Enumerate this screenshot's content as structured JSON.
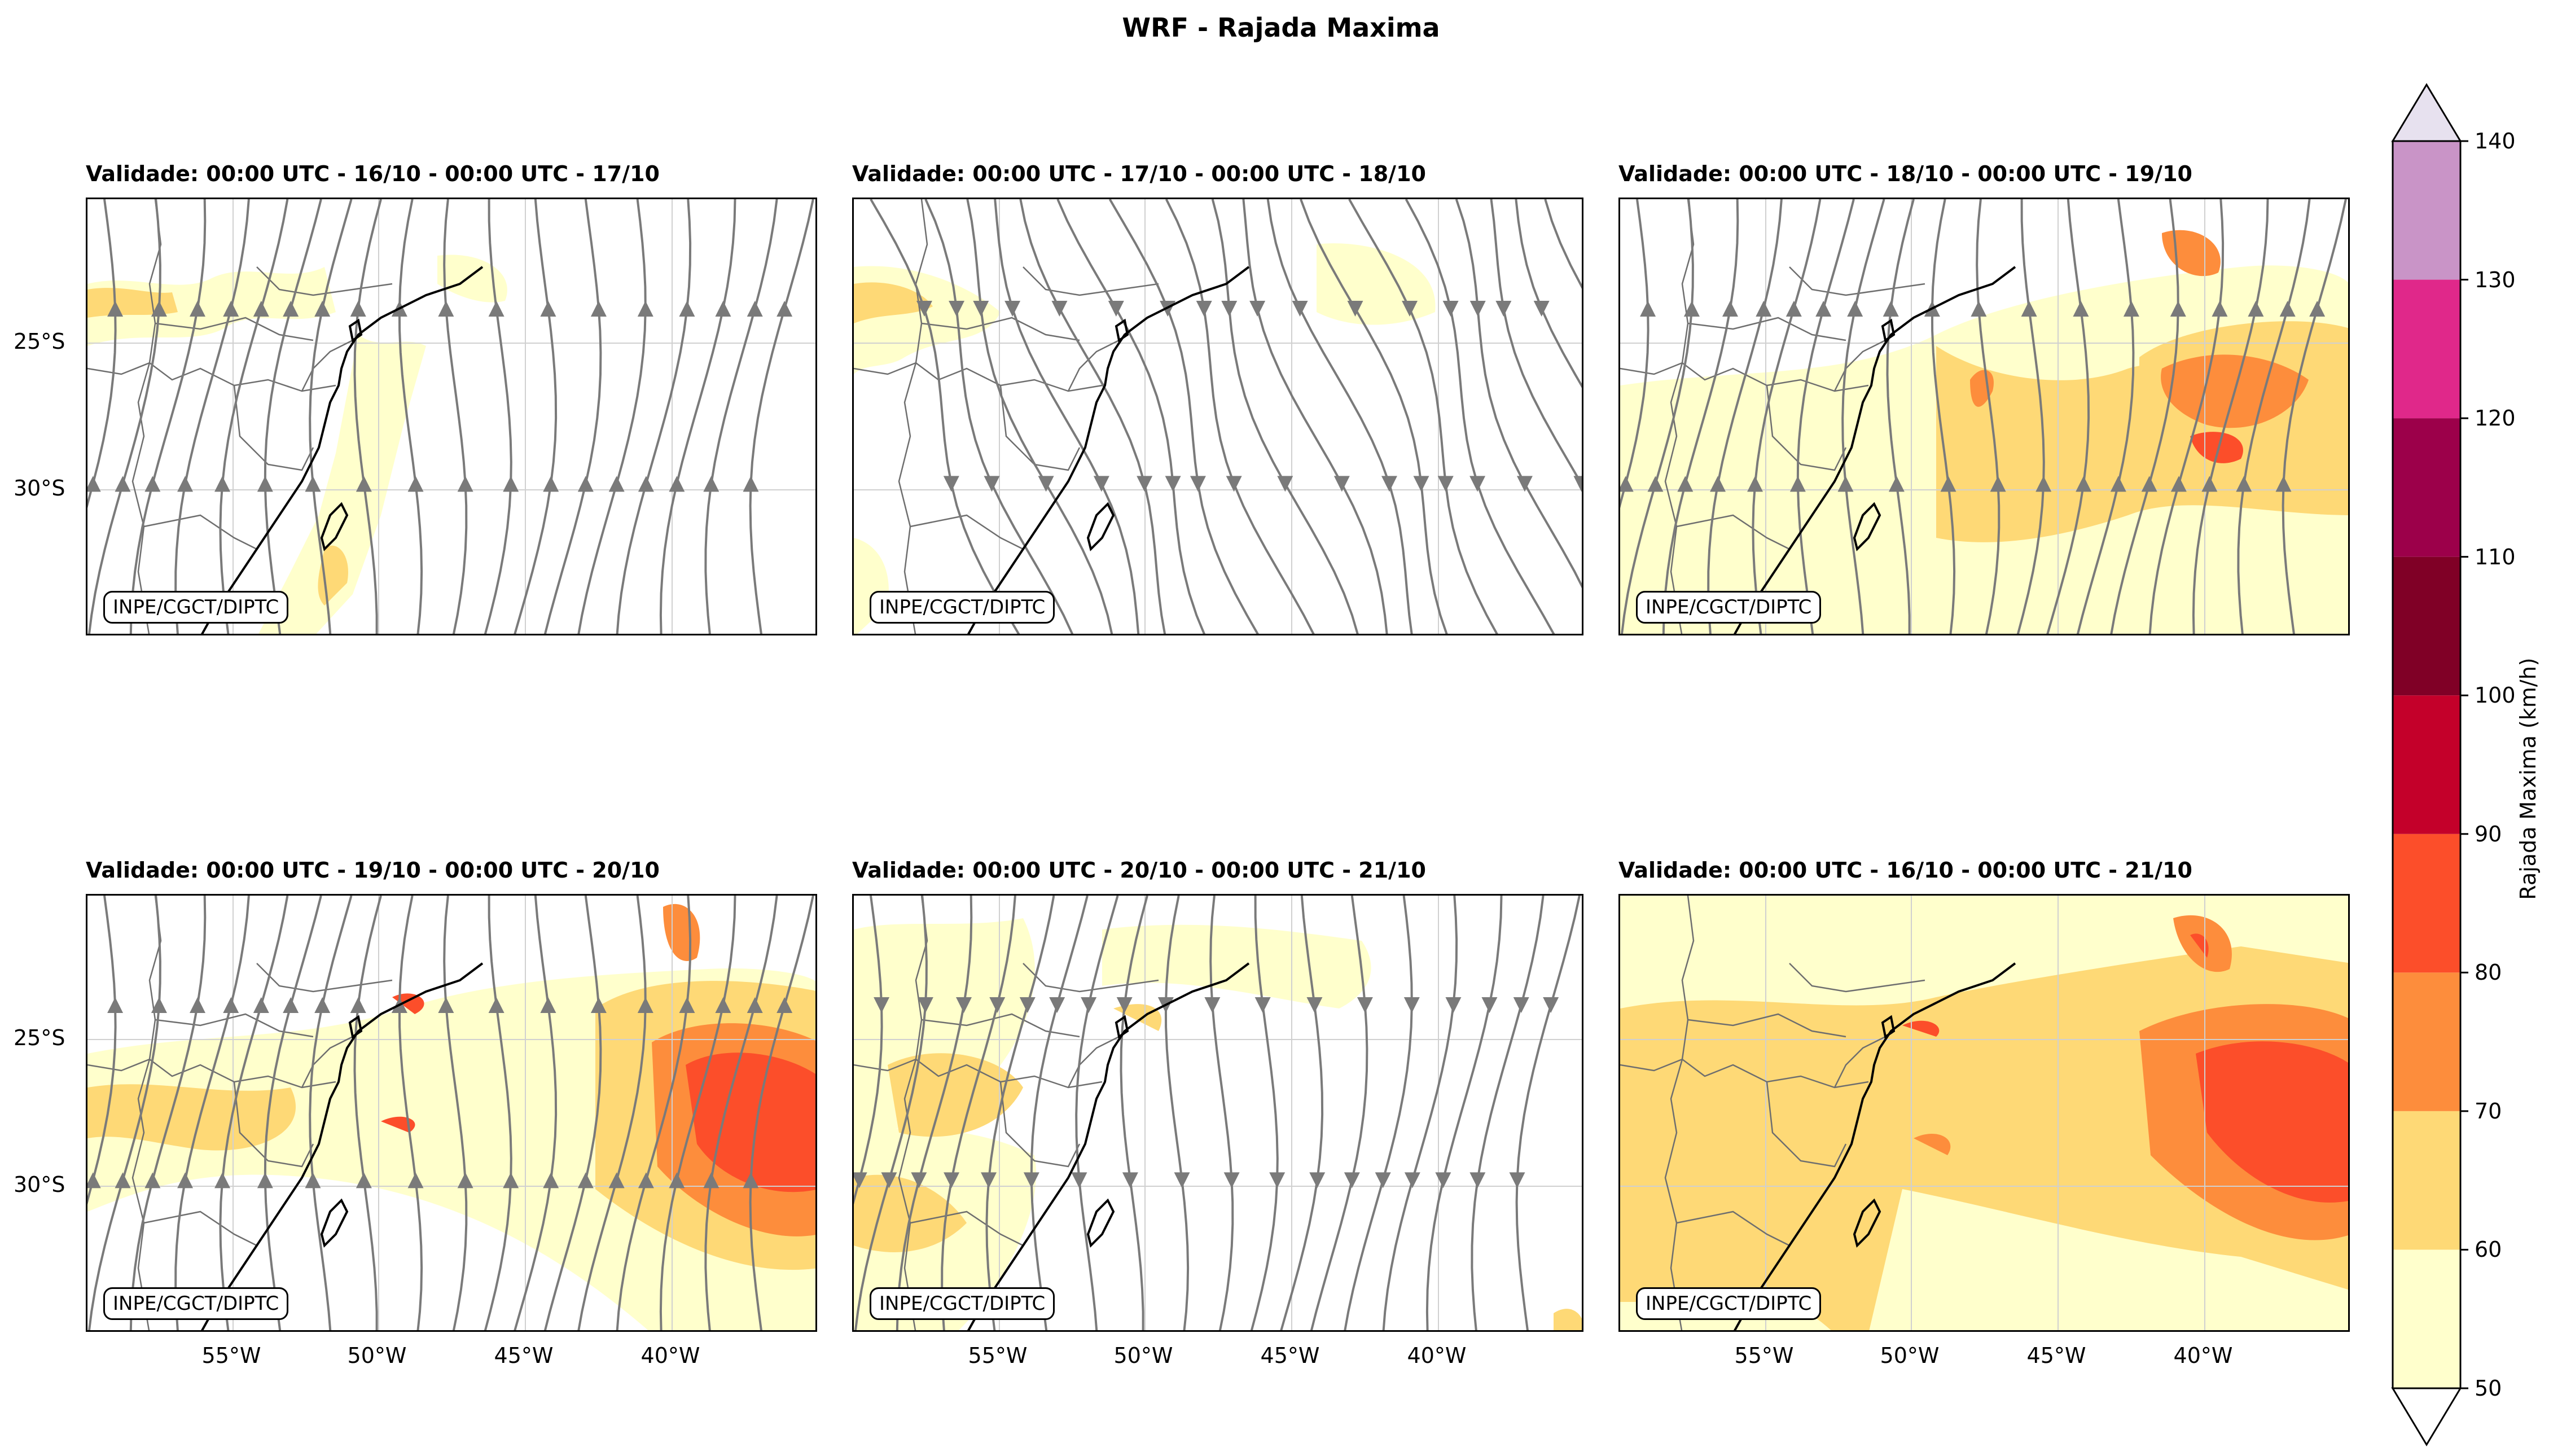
{
  "title": "WRF - Rajada Maxima",
  "credit": "INPE/CGCT/DIPTC",
  "panels": [
    {
      "title": "Validade: 00:00 UTC - 16/10 - 00:00 UTC - 17/10",
      "flow": "north"
    },
    {
      "title": "Validade: 00:00 UTC - 17/10 - 00:00 UTC - 18/10",
      "flow": "southwest"
    },
    {
      "title": "Validade: 00:00 UTC - 18/10 - 00:00 UTC - 19/10",
      "flow": "north"
    },
    {
      "title": "Validade: 00:00 UTC - 19/10 - 00:00 UTC - 20/10",
      "flow": "north"
    },
    {
      "title": "Validade: 00:00 UTC - 20/10 - 00:00 UTC - 21/10",
      "flow": "south"
    },
    {
      "title": "Validade: 00:00 UTC - 16/10 - 00:00 UTC - 21/10",
      "flow": "none"
    }
  ],
  "lat_labels": [
    "25°S",
    "30°S"
  ],
  "lon_labels": [
    "55°W",
    "50°W",
    "45°W",
    "40°W"
  ],
  "colorbar": {
    "label": "Rajada Maxima (km/h)",
    "ticks": [
      "50",
      "60",
      "70",
      "80",
      "90",
      "100",
      "110",
      "120",
      "130",
      "140"
    ],
    "colors": [
      "#ffffcc",
      "#fed976",
      "#fd8d3c",
      "#fc4e2a",
      "#c4002a",
      "#800026",
      "#9c004a",
      "#e0288a",
      "#c994c7"
    ],
    "over_color": "#e7e1ef",
    "under_color": "#ffffff"
  },
  "colors": {
    "coast": "#000000",
    "borders": "#6e6e6e",
    "streamlines": "#7a7a7a"
  }
}
